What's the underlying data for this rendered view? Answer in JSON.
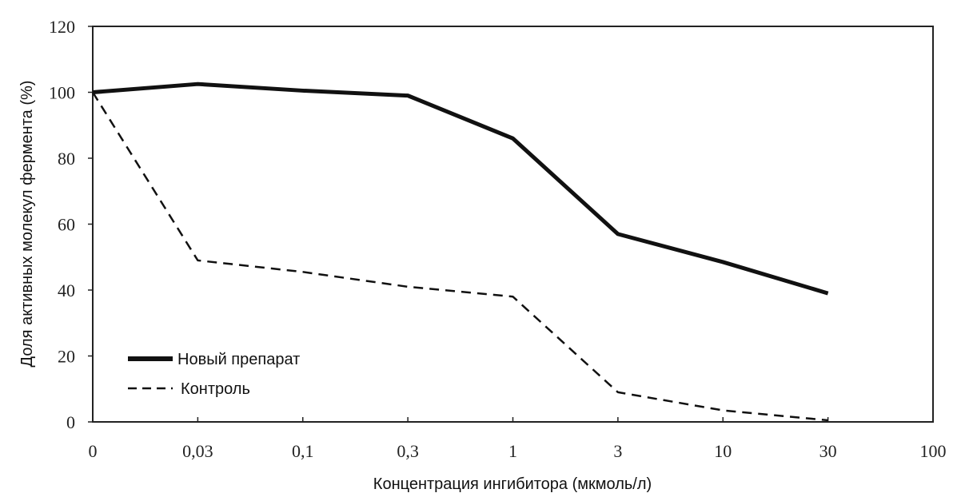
{
  "chart_data": {
    "type": "line",
    "title": "",
    "xlabel": "Концентрация ингибитора (мкмоль/л)",
    "ylabel": "Доля активных молекул фермента (%)",
    "categories": [
      "0",
      "0,03",
      "0,1",
      "0,3",
      "1",
      "3",
      "10",
      "30",
      "100"
    ],
    "yticks": [
      "0",
      "20",
      "40",
      "60",
      "80",
      "100",
      "120"
    ],
    "ylim": [
      0,
      120
    ],
    "grid": false,
    "legend_position": "bottom-left",
    "series": [
      {
        "name": "Новый препарат",
        "style": "solid",
        "color": "#111111",
        "values": [
          100,
          102.5,
          100.5,
          99,
          86,
          57,
          48.5,
          39,
          null
        ]
      },
      {
        "name": "Контроль",
        "style": "dashed",
        "color": "#111111",
        "values": [
          100,
          49,
          45.5,
          41,
          38,
          9,
          3.5,
          0.5,
          null
        ]
      }
    ]
  }
}
